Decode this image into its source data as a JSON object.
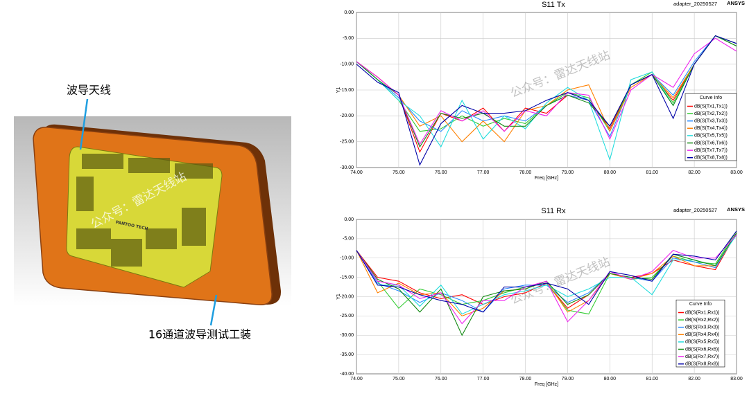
{
  "figure": {
    "labels": [
      "波导天线",
      "16通道波导测试工装"
    ],
    "logo": "PANTOO TECH",
    "watermark": "公众号：雷达天线站"
  },
  "chart_data": [
    {
      "type": "line",
      "title": "S11 Tx",
      "subtitle": "adapter_20250527",
      "brand": "ANSYS",
      "x_label": "Freq [GHz]",
      "y_label": "Y1",
      "legend_title": "Curve Info",
      "legend": "lower right",
      "grid": true,
      "x": [
        74,
        74.5,
        75,
        75.5,
        76,
        76.5,
        77,
        77.5,
        78,
        78.5,
        79,
        79.5,
        80,
        80.5,
        81,
        81.5,
        82,
        82.5,
        83
      ],
      "xlim": [
        74,
        83
      ],
      "xticks": [
        {
          "value": 74,
          "label": "74.00"
        },
        {
          "value": 75,
          "label": "75.00"
        },
        {
          "value": 76,
          "label": "76.00"
        },
        {
          "value": 77,
          "label": "77.00"
        },
        {
          "value": 78,
          "label": "78.00"
        },
        {
          "value": 79,
          "label": "79.00"
        },
        {
          "value": 80,
          "label": "80.00"
        },
        {
          "value": 81,
          "label": "81.00"
        },
        {
          "value": 82,
          "label": "82.00"
        },
        {
          "value": 83,
          "label": "83.00"
        }
      ],
      "ylim": [
        -30,
        0
      ],
      "yticks": [
        {
          "value": 0,
          "label": "0.00"
        },
        {
          "value": -5,
          "label": "-5.00"
        },
        {
          "value": -10,
          "label": "-10.00"
        },
        {
          "value": -15,
          "label": "-15.00"
        },
        {
          "value": -20,
          "label": "-20.00"
        },
        {
          "value": -25,
          "label": "-25.00"
        },
        {
          "value": -30,
          "label": "-30.00"
        }
      ],
      "series": [
        {
          "name": "dB(S(Tx1,Tx1))",
          "color": "#ff0000",
          "values": [
            -9.5,
            -12.5,
            -16,
            -27,
            -19.5,
            -21,
            -18.5,
            -23,
            -18.5,
            -19.5,
            -16,
            -17,
            -22.5,
            -14,
            -12,
            -17,
            -10,
            -4.5,
            -6
          ]
        },
        {
          "name": "dB(S(Tx2,Tx2))",
          "color": "#33cc33",
          "values": [
            -9.5,
            -13,
            -17,
            -23,
            -22.5,
            -20,
            -22,
            -20.5,
            -21.5,
            -18,
            -15.5,
            -16.5,
            -23,
            -14,
            -11.5,
            -17.5,
            -10,
            -4.5,
            -6.5
          ]
        },
        {
          "name": "dB(S(Tx3,Tx3))",
          "color": "#2a8cff",
          "values": [
            -9.5,
            -13,
            -16.5,
            -21,
            -23,
            -19,
            -21,
            -20,
            -21,
            -18,
            -16,
            -17,
            -24,
            -14,
            -12,
            -16,
            -9.5,
            -4.5,
            -6
          ]
        },
        {
          "name": "dB(S(Tx4,Tx4))",
          "color": "#ff8000",
          "values": [
            -9.5,
            -12.5,
            -16,
            -22,
            -20,
            -25,
            -21,
            -25,
            -19,
            -18,
            -15,
            -14,
            -23,
            -14.5,
            -12,
            -16.5,
            -10,
            -4.5,
            -6
          ]
        },
        {
          "name": "dB(S(Tx5,Tx5))",
          "color": "#22dddd",
          "values": [
            -9.5,
            -13,
            -17,
            -20,
            -26,
            -17,
            -24.5,
            -20,
            -22.5,
            -17.5,
            -14.5,
            -17,
            -28.5,
            -13,
            -11.5,
            -18,
            -10,
            -4.5,
            -6
          ]
        },
        {
          "name": "dB(S(Tx6,Tx6))",
          "color": "#138a13",
          "values": [
            -9.5,
            -13,
            -16,
            -26,
            -19.5,
            -20.5,
            -19.5,
            -22,
            -22,
            -18,
            -16,
            -17.5,
            -22,
            -14,
            -12,
            -18,
            -10,
            -4.5,
            -6.5
          ]
        },
        {
          "name": "dB(S(Tx7,Tx7))",
          "color": "#ee22ee",
          "values": [
            -9.5,
            -12.5,
            -16,
            -25.5,
            -19,
            -21,
            -19,
            -23,
            -19,
            -20,
            -15.5,
            -16,
            -24.5,
            -15,
            -12,
            -14.5,
            -8,
            -5,
            -7.5
          ]
        },
        {
          "name": "dB(S(Tx8,Tx8))",
          "color": "#0000a8",
          "values": [
            -10,
            -13.5,
            -15.5,
            -29.5,
            -21.5,
            -18,
            -19.5,
            -19.5,
            -19,
            -17,
            -15.5,
            -17,
            -22,
            -14,
            -12,
            -20.5,
            -10,
            -4.5,
            -6
          ]
        }
      ]
    },
    {
      "type": "line",
      "title": "S11 Rx",
      "subtitle": "adapter_20250527",
      "brand": "ANSYS",
      "x_label": "Freq [GHz]",
      "y_label": "Y1",
      "legend_title": "Curve Info",
      "legend": "lower right",
      "grid": true,
      "x": [
        74,
        74.5,
        75,
        75.5,
        76,
        76.5,
        77,
        77.5,
        78,
        78.5,
        79,
        79.5,
        80,
        80.5,
        81,
        81.5,
        82,
        82.5,
        83
      ],
      "xlim": [
        74,
        83
      ],
      "xticks": [
        {
          "value": 74,
          "label": "74.00"
        },
        {
          "value": 75,
          "label": "75.00"
        },
        {
          "value": 76,
          "label": "76.00"
        },
        {
          "value": 77,
          "label": "77.00"
        },
        {
          "value": 78,
          "label": "78.00"
        },
        {
          "value": 79,
          "label": "79.00"
        },
        {
          "value": 80,
          "label": "80.00"
        },
        {
          "value": 81,
          "label": "81.00"
        },
        {
          "value": 82,
          "label": "82.00"
        },
        {
          "value": 83,
          "label": "83.00"
        }
      ],
      "ylim": [
        -40,
        0
      ],
      "yticks": [
        {
          "value": 0,
          "label": "0.00"
        },
        {
          "value": -5,
          "label": "-5.00"
        },
        {
          "value": -10,
          "label": "-10.00"
        },
        {
          "value": -15,
          "label": "-15.00"
        },
        {
          "value": -20,
          "label": "-20.00"
        },
        {
          "value": -25,
          "label": "-25.00"
        },
        {
          "value": -30,
          "label": "-30.00"
        },
        {
          "value": -35,
          "label": "-35.00"
        },
        {
          "value": -40,
          "label": "-40.00"
        }
      ],
      "series": [
        {
          "name": "dB(S(Rx1,Rx1))",
          "color": "#ff0000",
          "values": [
            -8,
            -15,
            -16,
            -19,
            -20.5,
            -19.5,
            -22,
            -20,
            -19,
            -16.5,
            -23,
            -19.5,
            -14,
            -15,
            -14,
            -10.5,
            -12,
            -13,
            -3.5
          ]
        },
        {
          "name": "dB(S(Rx2,Rx2))",
          "color": "#33cc33",
          "values": [
            -8,
            -16,
            -23,
            -18,
            -19.5,
            -22,
            -21,
            -19,
            -17.5,
            -16.5,
            -23.5,
            -24.5,
            -14,
            -15.5,
            -15,
            -9.5,
            -11,
            -11.5,
            -3
          ]
        },
        {
          "name": "dB(S(Rx3,Rx3))",
          "color": "#2a8cff",
          "values": [
            -8,
            -16.5,
            -18.5,
            -21.5,
            -19,
            -21,
            -24,
            -18,
            -17,
            -17,
            -21.5,
            -19,
            -14,
            -15,
            -16,
            -10,
            -11,
            -12.5,
            -3.5
          ]
        },
        {
          "name": "dB(S(Rx4,Rx4))",
          "color": "#ff8000",
          "values": [
            -8,
            -19,
            -16.5,
            -19.5,
            -19,
            -25,
            -23,
            -18.5,
            -18,
            -16,
            -24,
            -21,
            -14,
            -15.5,
            -14,
            -9.5,
            -12,
            -12,
            -3.5
          ]
        },
        {
          "name": "dB(S(Rx5,Rx5))",
          "color": "#22dddd",
          "values": [
            -8,
            -17,
            -17,
            -22.5,
            -17,
            -24.5,
            -22,
            -19.5,
            -18.5,
            -17,
            -20,
            -18,
            -15,
            -15,
            -19.5,
            -10.5,
            -10.5,
            -12,
            -4
          ]
        },
        {
          "name": "dB(S(Rx6,Rx6))",
          "color": "#138a13",
          "values": [
            -8,
            -15.5,
            -18,
            -24,
            -18,
            -30,
            -20,
            -18.5,
            -18,
            -16,
            -22,
            -19.5,
            -14,
            -15,
            -15.5,
            -9,
            -10.5,
            -12,
            -3.5
          ]
        },
        {
          "name": "dB(S(Rx7,Rx7))",
          "color": "#ee22ee",
          "values": [
            -8,
            -16,
            -17,
            -20.5,
            -19,
            -27,
            -21,
            -21,
            -17.5,
            -16,
            -26.5,
            -21,
            -13.5,
            -15.5,
            -13.5,
            -8,
            -10,
            -10,
            -4
          ]
        },
        {
          "name": "dB(S(Rx8,Rx8))",
          "color": "#0000a8",
          "values": [
            -8,
            -17,
            -17.5,
            -19.5,
            -21,
            -22,
            -24,
            -17.5,
            -17.5,
            -16.5,
            -18,
            -22,
            -13.5,
            -14.5,
            -16,
            -9,
            -9.5,
            -10.5,
            -3
          ]
        }
      ]
    }
  ]
}
